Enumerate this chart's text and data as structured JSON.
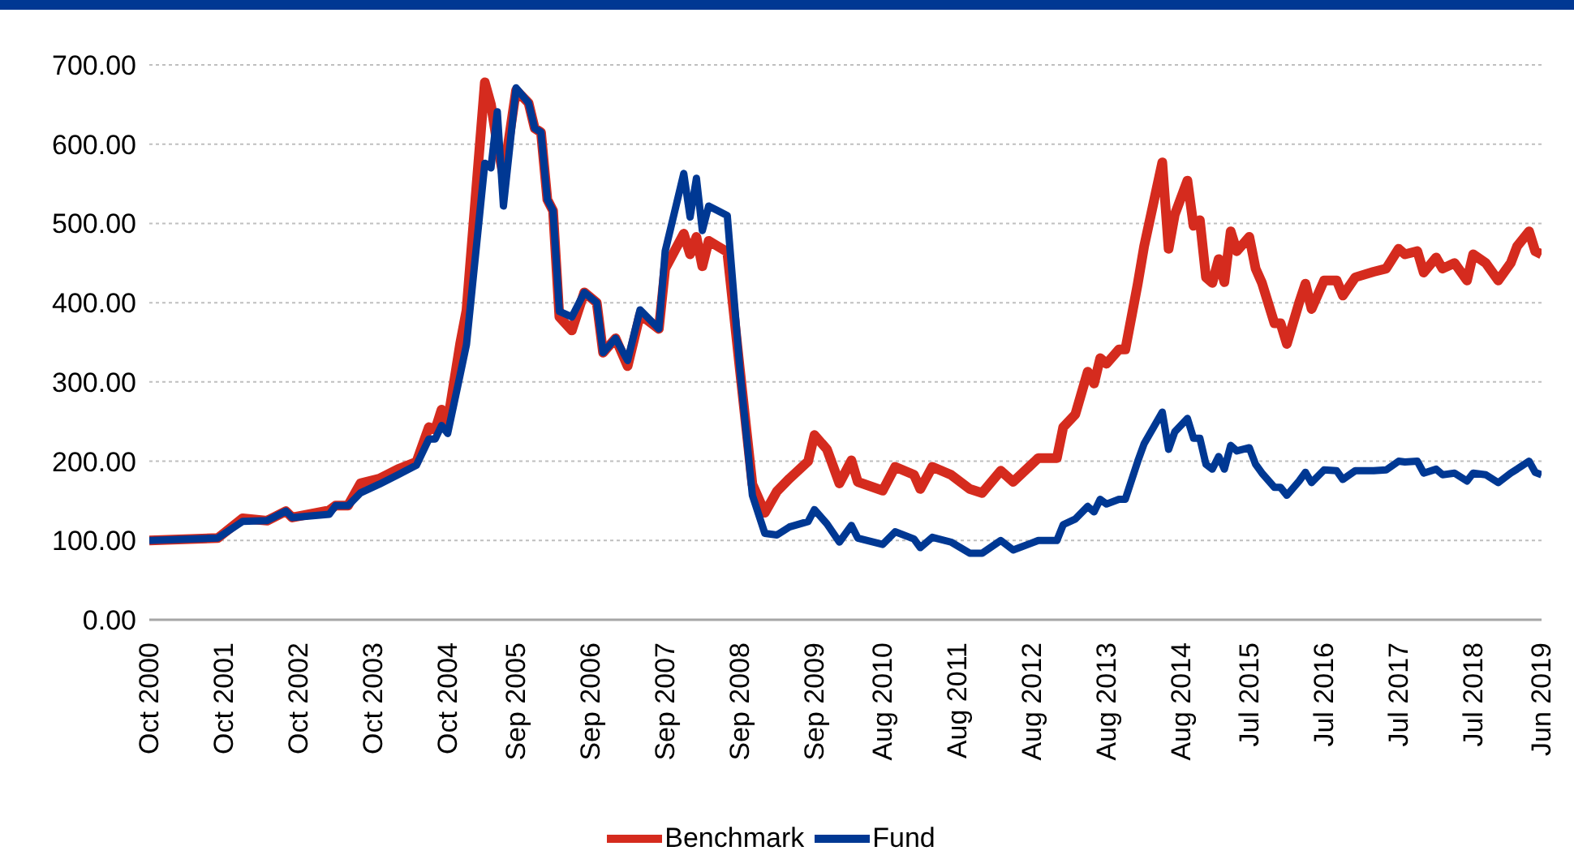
{
  "chart_data": {
    "type": "line",
    "x": [
      "2000-10",
      "2001-09",
      "2002-01",
      "2002-05",
      "2002-08",
      "2002-09",
      "2003-03",
      "2003-04",
      "2003-06",
      "2003-08",
      "2003-11",
      "2004-02",
      "2004-05",
      "2004-07",
      "2004-08",
      "2004-09",
      "2004-10",
      "2004-12",
      "2005-01",
      "2005-04",
      "2005-05",
      "2005-06",
      "2005-07",
      "2005-09",
      "2005-11",
      "2005-12",
      "2006-01",
      "2006-02",
      "2006-03",
      "2006-04",
      "2006-06",
      "2006-08",
      "2006-10",
      "2006-11",
      "2007-01",
      "2007-03",
      "2007-05",
      "2007-08",
      "2007-09",
      "2007-12",
      "2008-01",
      "2008-02",
      "2008-03",
      "2008-04",
      "2008-07",
      "2008-09",
      "2008-11",
      "2009-01",
      "2009-03",
      "2009-05",
      "2009-08",
      "2009-09",
      "2009-11",
      "2010-01",
      "2010-03",
      "2010-04",
      "2010-08",
      "2010-10",
      "2011-01",
      "2011-02",
      "2011-04",
      "2011-07",
      "2011-10",
      "2011-12",
      "2012-03",
      "2012-05",
      "2012-09",
      "2012-12",
      "2013-01",
      "2013-03",
      "2013-05",
      "2013-06",
      "2013-07",
      "2013-08",
      "2013-10",
      "2013-11",
      "2014-01",
      "2014-02",
      "2014-05",
      "2014-06",
      "2014-07",
      "2014-09",
      "2014-10",
      "2014-11",
      "2014-12",
      "2015-01",
      "2015-02",
      "2015-03",
      "2015-04",
      "2015-05",
      "2015-07",
      "2015-08",
      "2015-09",
      "2015-11",
      "2015-12",
      "2016-01",
      "2016-03",
      "2016-04",
      "2016-05",
      "2016-07",
      "2016-09",
      "2016-10",
      "2016-12",
      "2017-03",
      "2017-05",
      "2017-07",
      "2017-08",
      "2017-10",
      "2017-11",
      "2018-01",
      "2018-02",
      "2018-04",
      "2018-06",
      "2018-07",
      "2018-09",
      "2018-11",
      "2019-01",
      "2019-02",
      "2019-04",
      "2019-05",
      "2019-06"
    ],
    "series": [
      {
        "name": "Benchmark",
        "color": "#d52b1e",
        "values": [
          100,
          103,
          128,
          125,
          137,
          129,
          138,
          144,
          144,
          172,
          178,
          190,
          199,
          243,
          240,
          265,
          250,
          348,
          390,
          678,
          650,
          600,
          560,
          668,
          652,
          620,
          615,
          530,
          516,
          382,
          365,
          413,
          400,
          337,
          355,
          320,
          385,
          367,
          443,
          487,
          461,
          483,
          446,
          478,
          464,
          315,
          171,
          135,
          162,
          178,
          200,
          233,
          215,
          172,
          201,
          174,
          163,
          193,
          183,
          165,
          193,
          183,
          165,
          160,
          188,
          174,
          204,
          204,
          243,
          259,
          313,
          298,
          330,
          323,
          341,
          341,
          424,
          471,
          577,
          468,
          511,
          554,
          497,
          504,
          432,
          425,
          455,
          426,
          490,
          465,
          483,
          443,
          425,
          374,
          374,
          348,
          400,
          424,
          392,
          428,
          428,
          409,
          432,
          439,
          443,
          468,
          461,
          465,
          438,
          457,
          443,
          450,
          428,
          461,
          450,
          428,
          450,
          471,
          490,
          465,
          461
        ]
      },
      {
        "name": "Fund",
        "color": "#003893",
        "values": [
          100,
          103,
          124,
          125,
          137,
          129,
          133,
          144,
          144,
          160,
          171,
          183,
          195,
          228,
          228,
          245,
          235,
          309,
          347,
          576,
          570,
          641,
          522,
          671,
          652,
          620,
          615,
          530,
          516,
          389,
          382,
          413,
          400,
          337,
          355,
          327,
          391,
          367,
          465,
          563,
          508,
          557,
          491,
          522,
          510,
          315,
          157,
          109,
          107,
          117,
          124,
          139,
          121,
          98,
          119,
          103,
          95,
          111,
          102,
          91,
          104,
          98,
          84,
          84,
          100,
          88,
          100,
          100,
          120,
          127,
          143,
          136,
          152,
          146,
          152,
          152,
          200,
          222,
          262,
          215,
          237,
          254,
          229,
          229,
          196,
          190,
          206,
          190,
          220,
          213,
          217,
          196,
          185,
          167,
          167,
          157,
          175,
          186,
          173,
          189,
          188,
          177,
          188,
          188,
          189,
          200,
          199,
          200,
          185,
          190,
          183,
          185,
          175,
          185,
          183,
          173,
          185,
          190,
          200,
          186,
          183
        ]
      }
    ],
    "xlim": [
      "2000-10",
      "2019-06"
    ],
    "xticks": [
      {
        "value": "2000-10",
        "label": "Oct 2000"
      },
      {
        "value": "2001-10",
        "label": "Oct 2001"
      },
      {
        "value": "2002-10",
        "label": "Oct 2002"
      },
      {
        "value": "2003-10",
        "label": "Oct 2003"
      },
      {
        "value": "2004-10",
        "label": "Oct 2004"
      },
      {
        "value": "2005-09",
        "label": "Sep 2005"
      },
      {
        "value": "2006-09",
        "label": "Sep 2006"
      },
      {
        "value": "2007-09",
        "label": "Sep 2007"
      },
      {
        "value": "2008-09",
        "label": "Sep 2008"
      },
      {
        "value": "2009-09",
        "label": "Sep 2009"
      },
      {
        "value": "2010-08",
        "label": "Aug 2010"
      },
      {
        "value": "2011-08",
        "label": "Aug 2011"
      },
      {
        "value": "2012-08",
        "label": "Aug 2012"
      },
      {
        "value": "2013-08",
        "label": "Aug 2013"
      },
      {
        "value": "2014-08",
        "label": "Aug 2014"
      },
      {
        "value": "2015-07",
        "label": "Jul 2015"
      },
      {
        "value": "2016-07",
        "label": "Jul 2016"
      },
      {
        "value": "2017-07",
        "label": "Jul 2017"
      },
      {
        "value": "2018-07",
        "label": "Jul 2018"
      },
      {
        "value": "2019-06",
        "label": "Jun 2019"
      }
    ],
    "ylim": [
      0,
      700
    ],
    "yticks": [
      {
        "value": 0,
        "label": "0.00"
      },
      {
        "value": 100,
        "label": "100.00"
      },
      {
        "value": 200,
        "label": "200.00"
      },
      {
        "value": 300,
        "label": "300.00"
      },
      {
        "value": 400,
        "label": "400.00"
      },
      {
        "value": 500,
        "label": "500.00"
      },
      {
        "value": 600,
        "label": "600.00"
      },
      {
        "value": 700,
        "label": "700.00"
      }
    ],
    "grid": "y",
    "legend": "bottom",
    "marker": "none",
    "line_style": "solid"
  }
}
